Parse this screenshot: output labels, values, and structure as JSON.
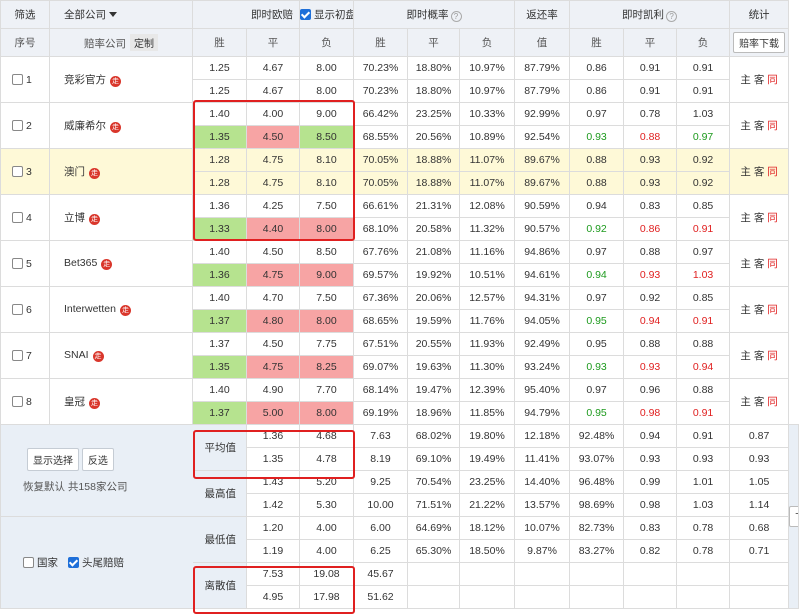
{
  "header": {
    "filter": "筛选",
    "company_select": "全部公司",
    "instant_odds": "即时欧赔",
    "show_initial": "显示初盘",
    "instant_prob": "即时概率",
    "return_rate": "返还率",
    "instant_kelly": "即时凯利",
    "stats": "统计"
  },
  "subheader": {
    "seq": "序号",
    "company": "赔率公司",
    "custom": "定制",
    "win": "胜",
    "draw": "平",
    "lose": "负",
    "value": "值",
    "download": "赔率下载"
  },
  "badge_char": "走",
  "rows": [
    {
      "num": "1",
      "name": "竞彩官方",
      "hl": false,
      "a": {
        "o": [
          "1.25",
          "4.67",
          "8.00"
        ],
        "oc": [
          "",
          "",
          ""
        ],
        "p": [
          "70.23%",
          "18.80%",
          "10.97%"
        ],
        "rr": "87.79%",
        "k": [
          "0.86",
          "0.91",
          "0.91"
        ],
        "kc": [
          "",
          "",
          ""
        ]
      },
      "b": {
        "o": [
          "1.25",
          "4.67",
          "8.00"
        ],
        "oc": [
          "",
          "",
          ""
        ],
        "p": [
          "70.23%",
          "18.80%",
          "10.97%"
        ],
        "rr": "87.79%",
        "k": [
          "0.86",
          "0.91",
          "0.91"
        ],
        "kc": [
          "",
          "",
          ""
        ]
      }
    },
    {
      "num": "2",
      "name": "威廉希尔",
      "hl": false,
      "a": {
        "o": [
          "1.40",
          "4.00",
          "9.00"
        ],
        "oc": [
          "",
          "",
          ""
        ],
        "p": [
          "66.42%",
          "23.25%",
          "10.33%"
        ],
        "rr": "92.99%",
        "k": [
          "0.97",
          "0.78",
          "1.03"
        ],
        "kc": [
          "",
          "",
          ""
        ]
      },
      "b": {
        "o": [
          "1.35",
          "4.50",
          "8.50"
        ],
        "oc": [
          "g",
          "r",
          "g"
        ],
        "p": [
          "68.55%",
          "20.56%",
          "10.89%"
        ],
        "rr": "92.54%",
        "k": [
          "0.93",
          "0.88",
          "0.97"
        ],
        "kc": [
          "tg",
          "tr",
          "tg"
        ]
      }
    },
    {
      "num": "3",
      "name": "澳门",
      "hl": true,
      "a": {
        "o": [
          "1.28",
          "4.75",
          "8.10"
        ],
        "oc": [
          "",
          "",
          ""
        ],
        "p": [
          "70.05%",
          "18.88%",
          "11.07%"
        ],
        "rr": "89.67%",
        "k": [
          "0.88",
          "0.93",
          "0.92"
        ],
        "kc": [
          "",
          "",
          ""
        ]
      },
      "b": {
        "o": [
          "1.28",
          "4.75",
          "8.10"
        ],
        "oc": [
          "",
          "",
          ""
        ],
        "p": [
          "70.05%",
          "18.88%",
          "11.07%"
        ],
        "rr": "89.67%",
        "k": [
          "0.88",
          "0.93",
          "0.92"
        ],
        "kc": [
          "",
          "",
          ""
        ]
      }
    },
    {
      "num": "4",
      "name": "立博",
      "hl": false,
      "a": {
        "o": [
          "1.36",
          "4.25",
          "7.50"
        ],
        "oc": [
          "",
          "",
          ""
        ],
        "p": [
          "66.61%",
          "21.31%",
          "12.08%"
        ],
        "rr": "90.59%",
        "k": [
          "0.94",
          "0.83",
          "0.85"
        ],
        "kc": [
          "",
          "",
          ""
        ]
      },
      "b": {
        "o": [
          "1.33",
          "4.40",
          "8.00"
        ],
        "oc": [
          "g",
          "r",
          "r"
        ],
        "p": [
          "68.10%",
          "20.58%",
          "11.32%"
        ],
        "rr": "90.57%",
        "k": [
          "0.92",
          "0.86",
          "0.91"
        ],
        "kc": [
          "tg",
          "tr",
          "tr"
        ]
      }
    },
    {
      "num": "5",
      "name": "Bet365",
      "hl": false,
      "a": {
        "o": [
          "1.40",
          "4.50",
          "8.50"
        ],
        "oc": [
          "",
          "",
          ""
        ],
        "p": [
          "67.76%",
          "21.08%",
          "11.16%"
        ],
        "rr": "94.86%",
        "k": [
          "0.97",
          "0.88",
          "0.97"
        ],
        "kc": [
          "",
          "",
          ""
        ]
      },
      "b": {
        "o": [
          "1.36",
          "4.75",
          "9.00"
        ],
        "oc": [
          "g",
          "r",
          "r"
        ],
        "p": [
          "69.57%",
          "19.92%",
          "10.51%"
        ],
        "rr": "94.61%",
        "k": [
          "0.94",
          "0.93",
          "1.03"
        ],
        "kc": [
          "tg",
          "tr",
          "tr"
        ]
      }
    },
    {
      "num": "6",
      "name": "Interwetten",
      "hl": false,
      "a": {
        "o": [
          "1.40",
          "4.70",
          "7.50"
        ],
        "oc": [
          "",
          "",
          ""
        ],
        "p": [
          "67.36%",
          "20.06%",
          "12.57%"
        ],
        "rr": "94.31%",
        "k": [
          "0.97",
          "0.92",
          "0.85"
        ],
        "kc": [
          "",
          "",
          ""
        ]
      },
      "b": {
        "o": [
          "1.37",
          "4.80",
          "8.00"
        ],
        "oc": [
          "g",
          "r",
          "r"
        ],
        "p": [
          "68.65%",
          "19.59%",
          "11.76%"
        ],
        "rr": "94.05%",
        "k": [
          "0.95",
          "0.94",
          "0.91"
        ],
        "kc": [
          "tg",
          "tr",
          "tr"
        ]
      }
    },
    {
      "num": "7",
      "name": "SNAI",
      "hl": false,
      "a": {
        "o": [
          "1.37",
          "4.50",
          "7.75"
        ],
        "oc": [
          "",
          "",
          ""
        ],
        "p": [
          "67.51%",
          "20.55%",
          "11.93%"
        ],
        "rr": "92.49%",
        "k": [
          "0.95",
          "0.88",
          "0.88"
        ],
        "kc": [
          "",
          "",
          ""
        ]
      },
      "b": {
        "o": [
          "1.35",
          "4.75",
          "8.25"
        ],
        "oc": [
          "g",
          "r",
          "r"
        ],
        "p": [
          "69.07%",
          "19.63%",
          "11.30%"
        ],
        "rr": "93.24%",
        "k": [
          "0.93",
          "0.93",
          "0.94"
        ],
        "kc": [
          "tg",
          "tr",
          "tr"
        ]
      }
    },
    {
      "num": "8",
      "name": "皇冠",
      "hl": false,
      "a": {
        "o": [
          "1.40",
          "4.90",
          "7.70"
        ],
        "oc": [
          "",
          "",
          ""
        ],
        "p": [
          "68.14%",
          "19.47%",
          "12.39%"
        ],
        "rr": "95.40%",
        "k": [
          "0.97",
          "0.96",
          "0.88"
        ],
        "kc": [
          "",
          "",
          ""
        ]
      },
      "b": {
        "o": [
          "1.37",
          "5.00",
          "8.00"
        ],
        "oc": [
          "g",
          "r",
          "r"
        ],
        "p": [
          "69.19%",
          "18.96%",
          "11.85%"
        ],
        "rr": "94.79%",
        "k": [
          "0.95",
          "0.98",
          "0.91"
        ],
        "kc": [
          "tg",
          "tr",
          "tr"
        ]
      }
    }
  ],
  "stat_cell": {
    "home": "主",
    "away": "客",
    "same": "同"
  },
  "summary": [
    {
      "label": "平均值",
      "a": {
        "o": [
          "1.36",
          "4.68",
          "7.63"
        ],
        "p": [
          "68.02%",
          "19.80%",
          "12.18%"
        ],
        "rr": "92.48%",
        "k": [
          "0.94",
          "0.91",
          "0.87"
        ]
      },
      "b": {
        "o": [
          "1.35",
          "4.78",
          "8.19"
        ],
        "p": [
          "69.10%",
          "19.49%",
          "11.41%"
        ],
        "rr": "93.07%",
        "k": [
          "0.93",
          "0.93",
          "0.93"
        ]
      }
    },
    {
      "label": "最高值",
      "a": {
        "o": [
          "1.43",
          "5.20",
          "9.25"
        ],
        "p": [
          "70.54%",
          "23.25%",
          "14.40%"
        ],
        "rr": "96.48%",
        "k": [
          "0.99",
          "1.01",
          "1.05"
        ]
      },
      "b": {
        "o": [
          "1.42",
          "5.30",
          "10.00"
        ],
        "p": [
          "71.51%",
          "21.22%",
          "13.57%"
        ],
        "rr": "98.69%",
        "k": [
          "0.98",
          "1.03",
          "1.14"
        ]
      }
    },
    {
      "label": "最低值",
      "a": {
        "o": [
          "1.20",
          "4.00",
          "6.00"
        ],
        "p": [
          "64.69%",
          "18.12%",
          "10.07%"
        ],
        "rr": "82.73%",
        "k": [
          "0.83",
          "0.78",
          "0.68"
        ]
      },
      "b": {
        "o": [
          "1.19",
          "4.00",
          "6.25"
        ],
        "p": [
          "65.30%",
          "18.50%",
          "9.87%"
        ],
        "rr": "83.27%",
        "k": [
          "0.82",
          "0.78",
          "0.71"
        ]
      }
    },
    {
      "label": "离散值",
      "a": {
        "o": [
          "7.53",
          "19.08",
          "45.67"
        ],
        "p": [
          "",
          "",
          ""
        ],
        "rr": "",
        "k": [
          "",
          "",
          ""
        ]
      },
      "b": {
        "o": [
          "4.95",
          "17.98",
          "51.62"
        ],
        "p": [
          "",
          "",
          ""
        ],
        "rr": "",
        "k": [
          "",
          "",
          ""
        ]
      }
    }
  ],
  "left_panel": {
    "show_selected": "显示选择",
    "invert": "反选",
    "restore": "恢复默认",
    "total": "共158家公司",
    "country": "国家",
    "top_tail": "头尾赔赔"
  },
  "download": "下载"
}
